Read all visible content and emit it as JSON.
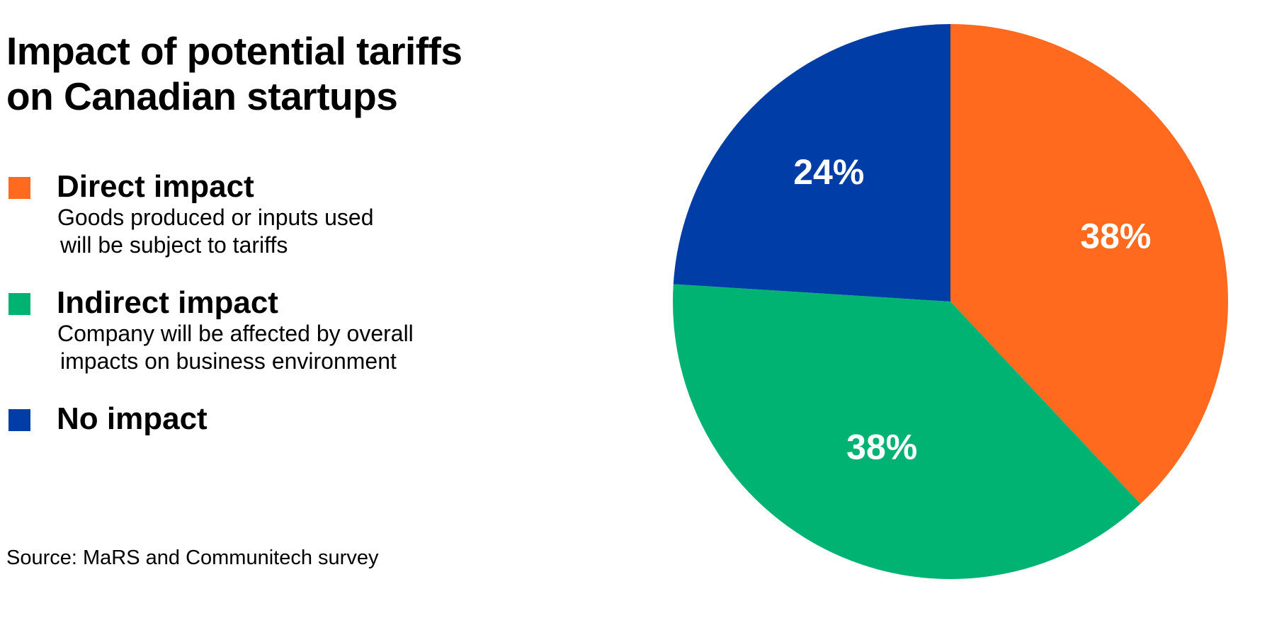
{
  "title": {
    "line1": "Impact of potential tariffs",
    "line2": "on Canadian startups"
  },
  "legend": [
    {
      "label": "Direct impact",
      "desc_line1": "Goods produced or inputs used",
      "desc_line2": "will be subject to tariffs",
      "color": "#FF6A1F"
    },
    {
      "label": "Indirect impact",
      "desc_line1": "Company will be affected by overall",
      "desc_line2": "impacts on business environment",
      "color": "#00B373"
    },
    {
      "label": "No impact",
      "desc_line1": "",
      "desc_line2": "",
      "color": "#003DA6"
    }
  ],
  "source": "Source: MaRS and Communitech survey",
  "chart_data": {
    "type": "pie",
    "title": "Impact of potential tariffs on Canadian startups",
    "start": "12 o'clock",
    "direction": "clockwise",
    "slices": [
      {
        "name": "Direct impact",
        "value": 38,
        "label": "38%",
        "color": "#FF6A1F"
      },
      {
        "name": "Indirect impact",
        "value": 38,
        "label": "38%",
        "color": "#00B373"
      },
      {
        "name": "No impact",
        "value": 24,
        "label": "24%",
        "color": "#003DA6"
      }
    ],
    "legend_position": "left"
  }
}
